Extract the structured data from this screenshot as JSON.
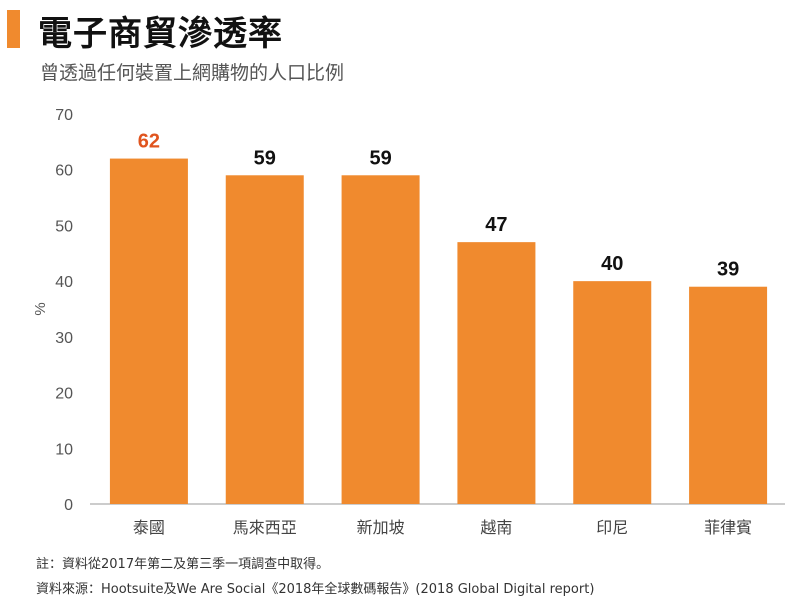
{
  "header": {
    "title": "電子商貿滲透率",
    "subtitle": "曾透過任何裝置上網購物的人口比例"
  },
  "colors": {
    "accent": "#f08a2e",
    "bar": "#f08a2e",
    "highlight_label": "#e0541e"
  },
  "chart_data": {
    "type": "bar",
    "title": "電子商貿滲透率",
    "subtitle": "曾透過任何裝置上網購物的人口比例",
    "categories": [
      "泰國",
      "馬來西亞",
      "新加坡",
      "越南",
      "印尼",
      "菲律賓"
    ],
    "values": [
      62,
      59,
      59,
      47,
      40,
      39
    ],
    "highlight_index": 0,
    "xlabel": "",
    "ylabel": "%",
    "ylim": [
      0,
      70
    ],
    "yticks": [
      0,
      10,
      20,
      30,
      40,
      50,
      60,
      70
    ],
    "grid": false
  },
  "footer": {
    "note": "註：資料從2017年第二及第三季一項調查中取得。",
    "source": "資料來源：Hootsuite及We Are Social《2018年全球數碼報告》(2018 Global Digital report)"
  }
}
